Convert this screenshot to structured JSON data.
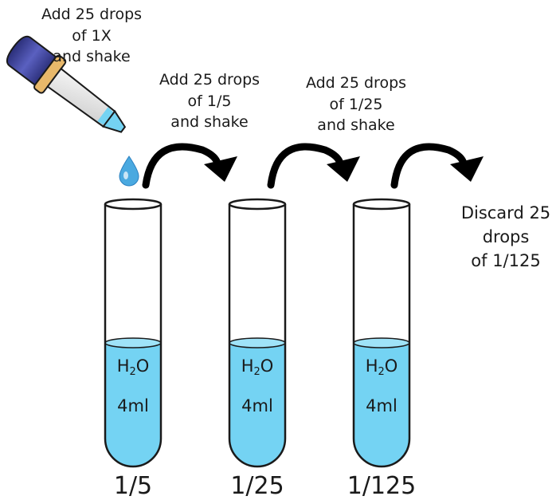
{
  "instruction_top": [
    "Add 25 drops",
    "of 1X",
    "and shake"
  ],
  "steps": [
    [
      "Add 25 drops",
      "of 1/5",
      "and shake"
    ],
    [
      "Add 25 drops",
      "of 1/25",
      "and shake"
    ]
  ],
  "discard": [
    "Discard 25",
    "drops",
    "of 1/125"
  ],
  "tubes": [
    {
      "label": "1/5",
      "content_h": "H",
      "content_sub": "2",
      "content_o": "O",
      "volume": "4ml"
    },
    {
      "label": "1/25",
      "content_h": "H",
      "content_sub": "2",
      "content_o": "O",
      "volume": "4ml"
    },
    {
      "label": "1/125",
      "content_h": "H",
      "content_sub": "2",
      "content_o": "O",
      "volume": "4ml"
    }
  ],
  "colors": {
    "liquid": "#74d3f3",
    "liquid_top": "#9fe3f8",
    "dropper_bulb": "#3b3f8f",
    "dropper_collar": "#e8b86a",
    "outline": "#1a1a1a"
  }
}
